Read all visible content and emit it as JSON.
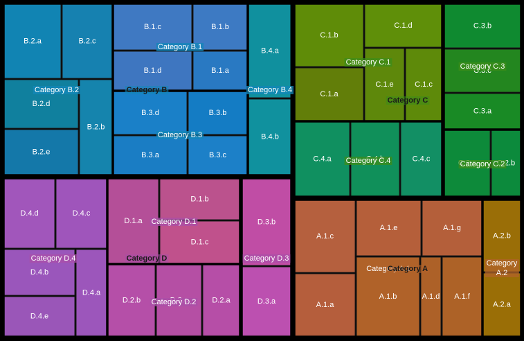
{
  "chart_data": {
    "type": "treemap",
    "categories": [
      {
        "name": "Category B",
        "color": "#1287b8",
        "groups": [
          {
            "name": "Category B.1",
            "leaves": [
              {
                "name": "B.1.c",
                "value": 55,
                "color": "#3f79c2"
              },
              {
                "name": "B.1.b",
                "value": 38,
                "color": "#3d7ac3"
              },
              {
                "name": "B.1.d",
                "value": 44,
                "color": "#3e76c0"
              },
              {
                "name": "B.1.a",
                "value": 33,
                "color": "#2979c2"
              }
            ]
          },
          {
            "name": "Category B.2",
            "leaves": [
              {
                "name": "B.2.a",
                "value": 50,
                "color": "#1184b3"
              },
              {
                "name": "B.2.c",
                "value": 43,
                "color": "#1681b0"
              },
              {
                "name": "B.2.d",
                "value": 43,
                "color": "#10809e"
              },
              {
                "name": "B.2.e",
                "value": 42,
                "color": "#1478a9"
              },
              {
                "name": "B.2.b",
                "value": 28,
                "color": "#1584ad"
              }
            ]
          },
          {
            "name": "Category B.3",
            "leaves": [
              {
                "name": "B.3.d",
                "value": 41,
                "color": "#1a80c8"
              },
              {
                "name": "B.3.b",
                "value": 33,
                "color": "#147cc4"
              },
              {
                "name": "B.3.a",
                "value": 41,
                "color": "#1a7dc4"
              },
              {
                "name": "B.3.c",
                "value": 33,
                "color": "#1c80c8"
              }
            ]
          },
          {
            "name": "Category B.4",
            "leaves": [
              {
                "name": "B.4.a",
                "value": 38,
                "color": "#10909e"
              },
              {
                "name": "B.4.b",
                "value": 37,
                "color": "#10919e"
              }
            ]
          }
        ]
      },
      {
        "name": "Category C",
        "color": "#3c8c1a",
        "groups": [
          {
            "name": "Category C.1",
            "leaves": [
              {
                "name": "C.1.b",
                "value": 33,
                "color": "#5f8c08"
              },
              {
                "name": "C.1.d",
                "value": 41,
                "color": "#5f8f09"
              },
              {
                "name": "C.1.a",
                "value": 30,
                "color": "#627e09"
              },
              {
                "name": "C.1.e",
                "value": 19,
                "color": "#5e880b"
              },
              {
                "name": "C.1.c",
                "value": 17,
                "color": "#5e8a0a"
              }
            ]
          },
          {
            "name": "Category C.2",
            "leaves": [
              {
                "name": "C.2.a",
                "value": 28,
                "color": "#0d8a3a"
              },
              {
                "name": "C.2.b",
                "value": 13,
                "color": "#0c8a3c"
              }
            ]
          },
          {
            "name": "Category C.3",
            "leaves": [
              {
                "name": "C.3.b",
                "value": 24,
                "color": "#0f8a30"
              },
              {
                "name": "C.3.c",
                "value": 24,
                "color": "#23861f"
              },
              {
                "name": "C.3.a",
                "value": 19,
                "color": "#198a25"
              }
            ]
          },
          {
            "name": "Category C.4",
            "leaves": [
              {
                "name": "C.4.a",
                "value": 23,
                "color": "#109060"
              },
              {
                "name": "C.4.b",
                "value": 21,
                "color": "#10905a"
              },
              {
                "name": "C.4.c",
                "value": 18,
                "color": "#128f64"
              }
            ]
          }
        ]
      },
      {
        "name": "Category D",
        "color": "#a94fa8",
        "groups": [
          {
            "name": "Category D.1",
            "leaves": [
              {
                "name": "D.1.a",
                "value": 24,
                "color": "#b44f98"
              },
              {
                "name": "D.1.b",
                "value": 37,
                "color": "#bb528d"
              },
              {
                "name": "D.1.c",
                "value": 36,
                "color": "#c0518c"
              }
            ]
          },
          {
            "name": "Category D.2",
            "leaves": [
              {
                "name": "D.2.b",
                "value": 25,
                "color": "#b54fa8"
              },
              {
                "name": "D.2.c",
                "value": 24,
                "color": "#b54fa4"
              },
              {
                "name": "D.2.a",
                "value": 19,
                "color": "#b64ea7"
              }
            ]
          },
          {
            "name": "Category D.3",
            "leaves": [
              {
                "name": "D.3.b",
                "value": 28,
                "color": "#c04da5"
              },
              {
                "name": "D.3.a",
                "value": 29,
                "color": "#bc50b0"
              }
            ]
          },
          {
            "name": "Category D.4",
            "leaves": [
              {
                "name": "D.4.d",
                "value": 30,
                "color": "#a156bb"
              },
              {
                "name": "D.4.c",
                "value": 28,
                "color": "#9f55bb"
              },
              {
                "name": "D.4.b",
                "value": 26,
                "color": "#9a56bb"
              },
              {
                "name": "D.4.e",
                "value": 23,
                "color": "#9a56b8"
              },
              {
                "name": "D.4.a",
                "value": 14,
                "color": "#9c56bb"
              }
            ]
          }
        ]
      },
      {
        "name": "Category A",
        "color": "#b0632a",
        "groups": [
          {
            "name": "Category A.1",
            "leaves": [
              {
                "name": "A.1.c",
                "value": 37,
                "color": "#b5603e"
              },
              {
                "name": "A.1.a",
                "value": 33,
                "color": "#b55e3c"
              },
              {
                "name": "A.1.e",
                "value": 35,
                "color": "#b55f3a"
              },
              {
                "name": "A.1.g",
                "value": 36,
                "color": "#b45f3a"
              },
              {
                "name": "A.1.b",
                "value": 26,
                "color": "#b06229"
              },
              {
                "name": "A.1.d",
                "value": 22,
                "color": "#ad6128"
              },
              {
                "name": "A.1.f",
                "value": 21,
                "color": "#ad6227"
              }
            ]
          },
          {
            "name": "Category A.2",
            "label_lines": [
              "Category",
              "A.2"
            ],
            "leaves": [
              {
                "name": "A.2.b",
                "value": 13,
                "color": "#9a6e07"
              },
              {
                "name": "A.2.a",
                "value": 11,
                "color": "#9a6e06"
              }
            ]
          }
        ]
      }
    ]
  }
}
